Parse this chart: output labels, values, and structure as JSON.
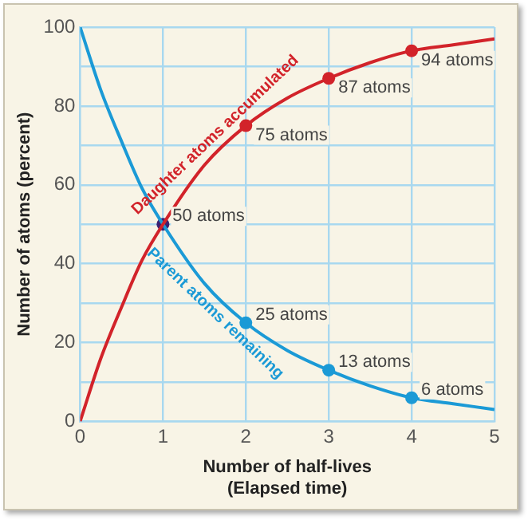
{
  "chart_data": {
    "type": "line",
    "xlabel": "Number of half-lives\n(Elapsed time)",
    "ylabel": "Number of atoms (percent)",
    "xlim": [
      0,
      5
    ],
    "ylim": [
      0,
      100
    ],
    "xticks": [
      0,
      1,
      2,
      3,
      4,
      5
    ],
    "yticks": [
      0,
      {
        "value": 10,
        "label": null
      },
      20,
      {
        "value": 30,
        "label": null
      },
      40,
      {
        "value": 50,
        "label": null
      },
      60,
      {
        "value": 70,
        "label": null
      },
      80,
      {
        "value": 90,
        "label": null
      },
      100
    ],
    "grid": true,
    "legend": false,
    "line_style": "solid",
    "series": [
      {
        "name": "Daughter atoms accumulated",
        "marker": "none",
        "color": "#d2232a",
        "x": [
          0,
          0.25,
          0.5,
          0.75,
          1,
          1.5,
          2,
          2.5,
          3,
          3.5,
          4,
          4.5,
          5
        ],
        "values": [
          0,
          16,
          29,
          41,
          50,
          65,
          75,
          82,
          87,
          91,
          94,
          95.5,
          97
        ]
      },
      {
        "name": "Parent atoms remaining",
        "marker": "none",
        "color": "#1b9ad6",
        "x": [
          0,
          0.25,
          0.5,
          0.75,
          1,
          1.5,
          2,
          2.5,
          3,
          3.5,
          4,
          4.5,
          5
        ],
        "values": [
          100,
          84,
          71,
          59,
          50,
          35,
          25,
          18,
          13,
          9,
          6,
          4.5,
          3
        ]
      },
      {
        "type": "scatter",
        "marker": "circle",
        "color": "#d2232a",
        "x": [
          2,
          3,
          4
        ],
        "values": [
          75,
          87,
          94
        ],
        "value_labels": [
          "75 atoms",
          "87 atoms",
          "94 atoms"
        ]
      },
      {
        "type": "scatter",
        "marker": "circle",
        "color": "#3b2270",
        "x": [
          1
        ],
        "values": [
          50
        ],
        "value_labels": [
          "50 atoms"
        ]
      },
      {
        "type": "scatter",
        "marker": "circle",
        "color": "#1b9ad6",
        "x": [
          2,
          3,
          4
        ],
        "values": [
          25,
          13,
          6
        ],
        "value_labels": [
          "25 atoms",
          "13 atoms",
          "6 atoms"
        ]
      }
    ]
  }
}
